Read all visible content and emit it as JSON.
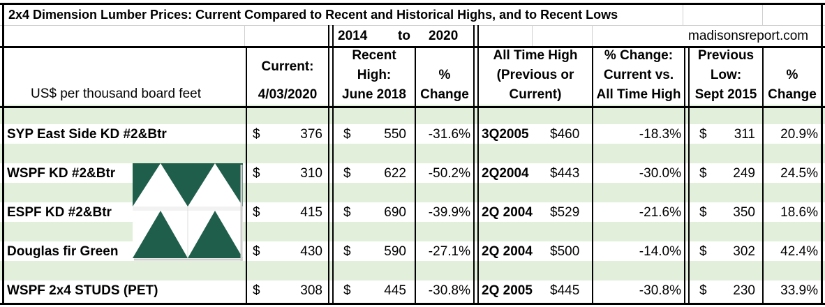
{
  "title": "2x4 Dimension Lumber Prices: Current Compared to Recent and Historical Highs, and to Recent Lows",
  "period": {
    "start": "2014",
    "to": "to",
    "end": "2020"
  },
  "source": "madisonsreport.com",
  "headers": {
    "units": "US$ per thousand board feet",
    "current": [
      "Current:",
      "4/03/2020"
    ],
    "recent_high": [
      "Recent",
      "High:",
      "June 2018"
    ],
    "pct_change_1": [
      "%",
      "Change"
    ],
    "all_time_high": [
      "All Time High",
      "(Previous or",
      "Current)"
    ],
    "pct_change_ath": [
      "% Change:",
      "Current vs.",
      "All Time High"
    ],
    "previous_low": [
      "Previous",
      "Low:",
      "Sept 2015"
    ],
    "pct_change_2": [
      "%",
      "Change"
    ]
  },
  "currency_symbol": "$",
  "rows": [
    {
      "product": "SYP East Side KD #2&Btr",
      "current": "376",
      "recent_high": "550",
      "pct_recent": "-31.6%",
      "ath_date": "3Q2005",
      "ath_price": "$460",
      "pct_ath": "-18.3%",
      "low": "311",
      "pct_low": "20.9%"
    },
    {
      "product": "WSPF KD #2&Btr",
      "current": "310",
      "recent_high": "622",
      "pct_recent": "-50.2%",
      "ath_date": "2Q2004",
      "ath_price": "$443",
      "pct_ath": "-30.0%",
      "low": "249",
      "pct_low": "24.5%"
    },
    {
      "product": "ESPF KD #2&Btr",
      "current": "415",
      "recent_high": "690",
      "pct_recent": "-39.9%",
      "ath_date": "2Q 2004",
      "ath_price": "$529",
      "pct_ath": "-21.6%",
      "low": "350",
      "pct_low": "18.6%"
    },
    {
      "product": "Douglas fir Green",
      "current": "430",
      "recent_high": "590",
      "pct_recent": "-27.1%",
      "ath_date": "2Q 2004",
      "ath_price": "$500",
      "pct_ath": "-14.0%",
      "low": "302",
      "pct_low": "42.4%"
    },
    {
      "product": "WSPF 2x4 STUDS (PET)",
      "current": "308",
      "recent_high": "445",
      "pct_recent": "-30.8%",
      "ath_date": "2Q 2005",
      "ath_price": "$445",
      "pct_ath": "-30.8%",
      "low": "230",
      "pct_low": "33.9%"
    }
  ],
  "colors": {
    "band": "#e2efda",
    "logo_green": "#1e5e4a",
    "grid": "#d0d0d0"
  }
}
